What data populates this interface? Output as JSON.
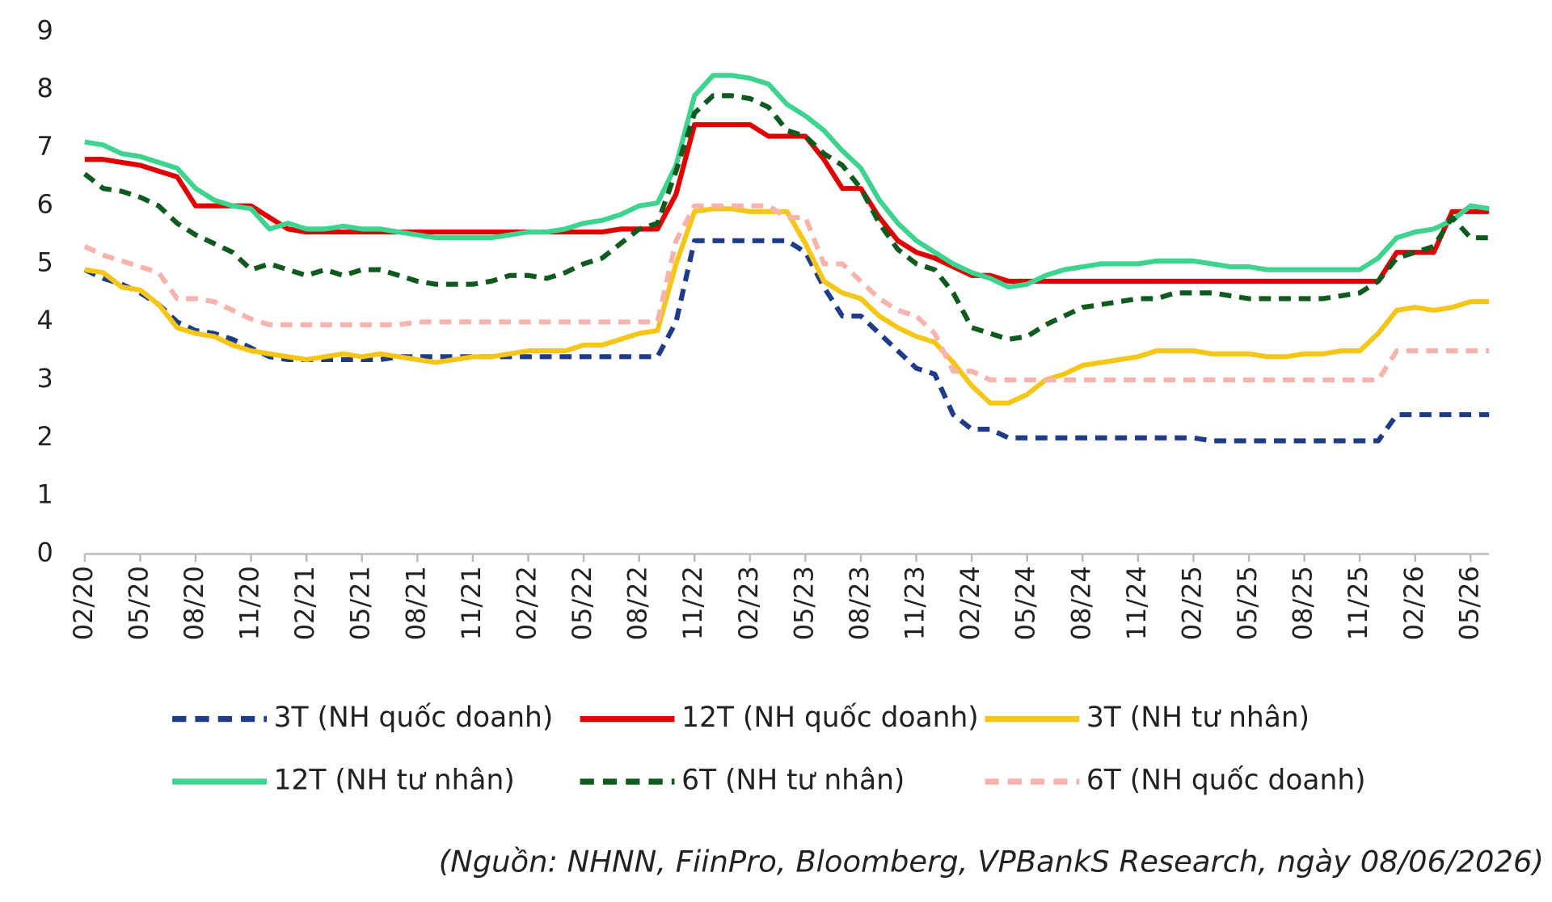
{
  "chart_data": {
    "type": "line",
    "categories": [
      "02/20",
      null,
      null,
      "05/20",
      null,
      null,
      "08/20",
      null,
      null,
      "11/20",
      null,
      null,
      "02/21",
      null,
      null,
      "05/21",
      null,
      null,
      "08/21",
      null,
      null,
      "11/21",
      null,
      null,
      "02/22",
      null,
      null,
      "05/22",
      null,
      null,
      "08/22",
      null,
      null,
      "11/22",
      null,
      null,
      "02/23",
      null,
      null,
      "05/23",
      null,
      null,
      "08/23",
      null,
      null,
      "11/23",
      null,
      null,
      "02/24",
      null,
      null,
      "05/24",
      null,
      null,
      "08/24",
      null,
      null,
      "11/24",
      null,
      null,
      "02/25",
      null,
      null,
      "05/25",
      null,
      null,
      "08/25",
      null,
      null,
      "11/25",
      null,
      null,
      "02/26",
      null,
      null,
      "05/26",
      null
    ],
    "ylim": [
      0,
      9
    ],
    "yticks": [
      0,
      1,
      2,
      3,
      4,
      5,
      6,
      7,
      8,
      9
    ],
    "grid": false,
    "series": [
      {
        "name": "3T (NH quốc doanh)",
        "color": "#1f3c88",
        "dashed": true,
        "values": [
          4.9,
          4.75,
          4.65,
          4.5,
          4.3,
          4.0,
          3.85,
          3.8,
          3.7,
          3.55,
          3.4,
          3.35,
          3.35,
          3.35,
          3.35,
          3.35,
          3.35,
          3.4,
          3.4,
          3.4,
          3.4,
          3.4,
          3.4,
          3.4,
          3.4,
          3.4,
          3.4,
          3.4,
          3.4,
          3.4,
          3.4,
          3.4,
          4.0,
          5.4,
          5.4,
          5.4,
          5.4,
          5.4,
          5.4,
          5.2,
          4.6,
          4.1,
          4.1,
          3.8,
          3.5,
          3.2,
          3.1,
          2.4,
          2.15,
          2.15,
          2.0,
          2.0,
          2.0,
          2.0,
          2.0,
          2.0,
          2.0,
          2.0,
          2.0,
          2.0,
          2.0,
          1.95,
          1.95,
          1.95,
          1.95,
          1.95,
          1.95,
          1.95,
          1.95,
          1.95,
          1.95,
          2.4,
          2.4,
          2.4,
          2.4,
          2.4,
          2.4
        ]
      },
      {
        "name": "12T (NH quốc doanh)",
        "color": "#e00000",
        "dashed": false,
        "values": [
          6.8,
          6.8,
          6.75,
          6.7,
          6.6,
          6.5,
          6.0,
          6.0,
          6.0,
          6.0,
          5.8,
          5.6,
          5.55,
          5.55,
          5.55,
          5.55,
          5.55,
          5.55,
          5.55,
          5.55,
          5.55,
          5.55,
          5.55,
          5.55,
          5.55,
          5.55,
          5.55,
          5.55,
          5.55,
          5.6,
          5.6,
          5.6,
          6.2,
          7.4,
          7.4,
          7.4,
          7.4,
          7.2,
          7.2,
          7.2,
          6.8,
          6.3,
          6.3,
          5.8,
          5.4,
          5.2,
          5.1,
          4.95,
          4.8,
          4.8,
          4.7,
          4.7,
          4.7,
          4.7,
          4.7,
          4.7,
          4.7,
          4.7,
          4.7,
          4.7,
          4.7,
          4.7,
          4.7,
          4.7,
          4.7,
          4.7,
          4.7,
          4.7,
          4.7,
          4.7,
          4.7,
          5.2,
          5.2,
          5.2,
          5.9,
          5.9,
          5.9
        ]
      },
      {
        "name": "3T (NH tư nhân)",
        "color": "#f5c518",
        "dashed": false,
        "values": [
          4.9,
          4.85,
          4.6,
          4.55,
          4.3,
          3.9,
          3.8,
          3.75,
          3.6,
          3.5,
          3.45,
          3.4,
          3.35,
          3.4,
          3.45,
          3.4,
          3.45,
          3.4,
          3.35,
          3.3,
          3.35,
          3.4,
          3.4,
          3.45,
          3.5,
          3.5,
          3.5,
          3.6,
          3.6,
          3.7,
          3.8,
          3.85,
          5.0,
          5.9,
          5.95,
          5.95,
          5.9,
          5.9,
          5.9,
          5.35,
          4.7,
          4.5,
          4.4,
          4.1,
          3.9,
          3.75,
          3.65,
          3.3,
          2.9,
          2.6,
          2.6,
          2.75,
          3.0,
          3.1,
          3.25,
          3.3,
          3.35,
          3.4,
          3.5,
          3.5,
          3.5,
          3.45,
          3.45,
          3.45,
          3.4,
          3.4,
          3.45,
          3.45,
          3.5,
          3.5,
          3.8,
          4.2,
          4.25,
          4.2,
          4.25,
          4.35,
          4.35
        ]
      },
      {
        "name": "12T (NH tư nhân)",
        "color": "#3ed38e",
        "dashed": false,
        "values": [
          7.1,
          7.05,
          6.9,
          6.85,
          6.75,
          6.65,
          6.3,
          6.1,
          6.0,
          5.95,
          5.6,
          5.7,
          5.6,
          5.6,
          5.65,
          5.6,
          5.6,
          5.55,
          5.5,
          5.45,
          5.45,
          5.45,
          5.45,
          5.5,
          5.55,
          5.55,
          5.6,
          5.7,
          5.75,
          5.85,
          6.0,
          6.05,
          6.7,
          7.9,
          8.25,
          8.25,
          8.2,
          8.1,
          7.75,
          7.55,
          7.3,
          6.95,
          6.65,
          6.1,
          5.7,
          5.4,
          5.2,
          5.0,
          4.85,
          4.75,
          4.6,
          4.65,
          4.8,
          4.9,
          4.95,
          5.0,
          5.0,
          5.0,
          5.05,
          5.05,
          5.05,
          5.0,
          4.95,
          4.95,
          4.9,
          4.9,
          4.9,
          4.9,
          4.9,
          4.9,
          5.1,
          5.45,
          5.55,
          5.6,
          5.75,
          6.0,
          5.95
        ]
      },
      {
        "name": "6T (NH tư nhân)",
        "color": "#0f5a1e",
        "dashed": true,
        "values": [
          6.55,
          6.3,
          6.25,
          6.15,
          6.0,
          5.7,
          5.5,
          5.35,
          5.2,
          4.9,
          5.0,
          4.9,
          4.8,
          4.9,
          4.8,
          4.9,
          4.9,
          4.8,
          4.7,
          4.65,
          4.65,
          4.65,
          4.7,
          4.8,
          4.8,
          4.75,
          4.85,
          5.0,
          5.1,
          5.35,
          5.6,
          5.7,
          6.6,
          7.6,
          7.9,
          7.9,
          7.85,
          7.7,
          7.3,
          7.2,
          6.9,
          6.7,
          6.3,
          5.7,
          5.25,
          5.0,
          4.9,
          4.5,
          3.9,
          3.8,
          3.7,
          3.75,
          3.95,
          4.1,
          4.25,
          4.3,
          4.35,
          4.4,
          4.4,
          4.5,
          4.5,
          4.5,
          4.45,
          4.4,
          4.4,
          4.4,
          4.4,
          4.4,
          4.45,
          4.5,
          4.7,
          5.1,
          5.2,
          5.3,
          5.8,
          5.45,
          5.45
        ]
      },
      {
        "name": "6T (NH quốc doanh)",
        "color": "#f8b4ac",
        "dashed": true,
        "values": [
          5.3,
          5.15,
          5.05,
          4.95,
          4.85,
          4.4,
          4.4,
          4.35,
          4.2,
          4.05,
          3.95,
          3.95,
          3.95,
          3.95,
          3.95,
          3.95,
          3.95,
          3.95,
          4.0,
          4.0,
          4.0,
          4.0,
          4.0,
          4.0,
          4.0,
          4.0,
          4.0,
          4.0,
          4.0,
          4.0,
          4.0,
          4.0,
          5.4,
          6.0,
          6.0,
          6.0,
          6.0,
          6.0,
          5.8,
          5.8,
          5.0,
          5.0,
          4.7,
          4.4,
          4.2,
          4.1,
          3.8,
          3.15,
          3.15,
          3.0,
          3.0,
          3.0,
          3.0,
          3.0,
          3.0,
          3.0,
          3.0,
          3.0,
          3.0,
          3.0,
          3.0,
          3.0,
          3.0,
          3.0,
          3.0,
          3.0,
          3.0,
          3.0,
          3.0,
          3.0,
          3.0,
          3.5,
          3.5,
          3.5,
          3.5,
          3.5,
          3.5
        ]
      }
    ],
    "source": "(Nguồn: NHNN, FiinPro, Bloomberg, VPBankS Research, ngày 08/06/2026)"
  }
}
